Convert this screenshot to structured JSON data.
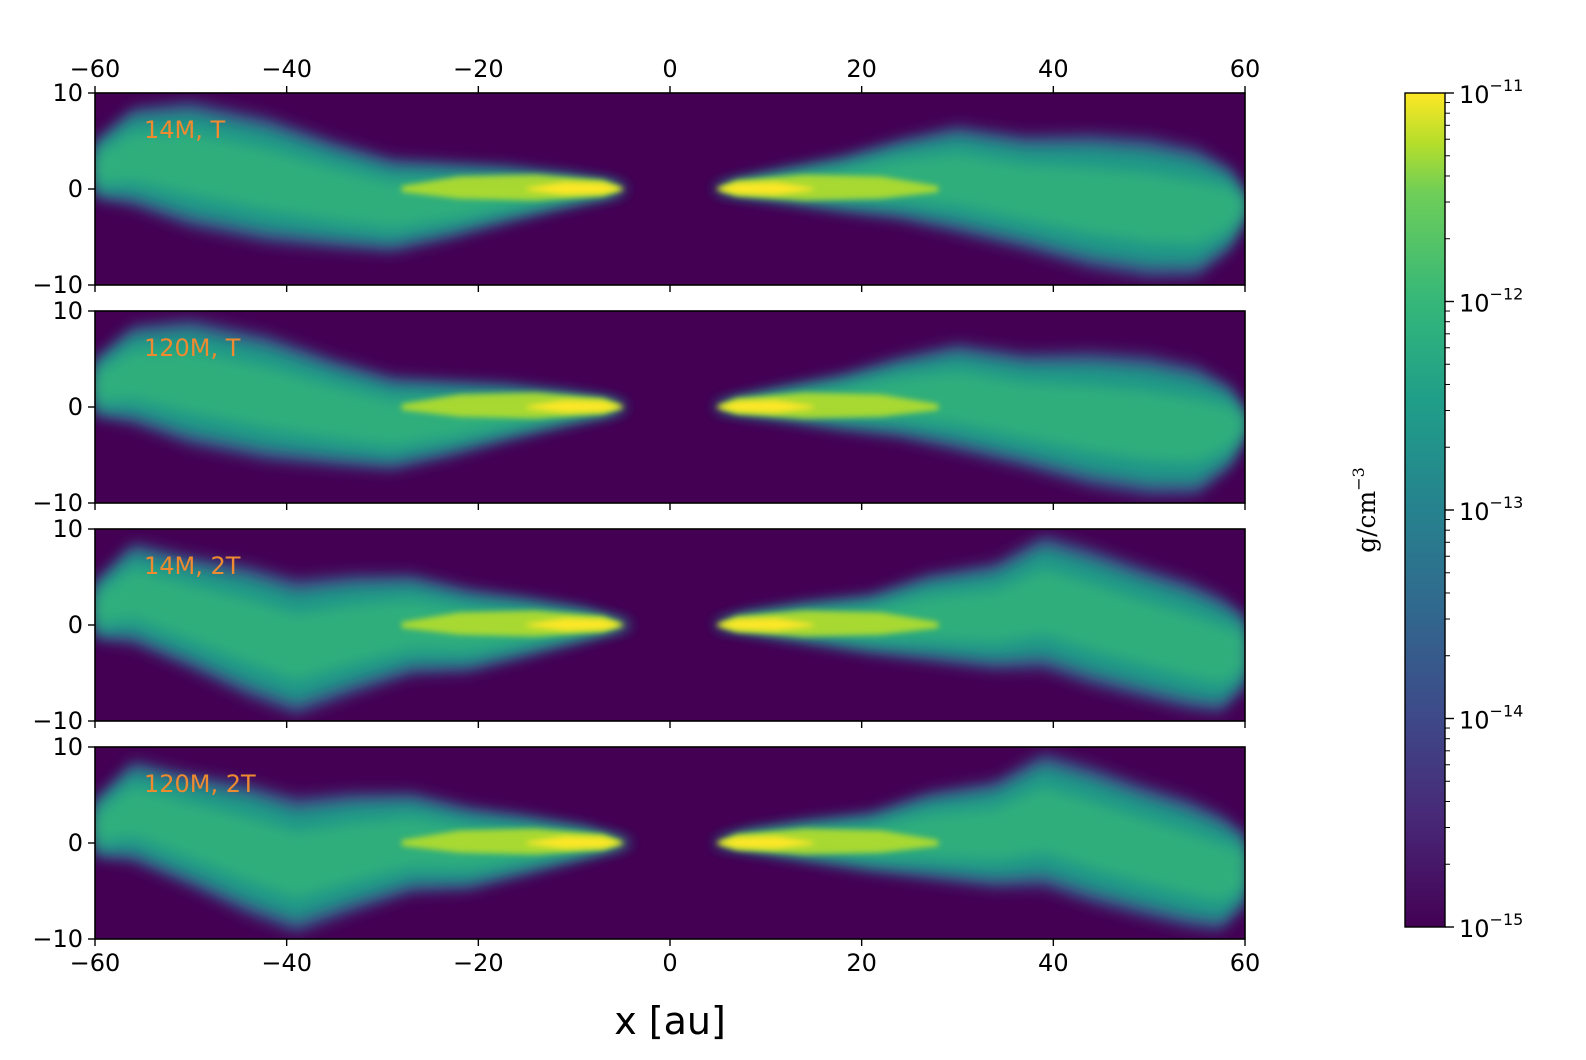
{
  "chart_data": {
    "type": "heatmap",
    "colormap": "viridis",
    "panels": [
      {
        "label": "14M, T",
        "variant": "T"
      },
      {
        "label": "120M, T",
        "variant": "T"
      },
      {
        "label": "14M, 2T",
        "variant": "2T"
      },
      {
        "label": "120M, 2T",
        "variant": "2T"
      }
    ],
    "xlabel": "x [au]",
    "xlim": [
      -60,
      60
    ],
    "ylim": [
      -10,
      10
    ],
    "x_ticks": [
      -60,
      -40,
      -20,
      0,
      20,
      40,
      60
    ],
    "x_tick_labels": [
      "−60",
      "−40",
      "−20",
      "0",
      "20",
      "40",
      "60"
    ],
    "y_ticks": [
      10,
      0,
      -10
    ],
    "y_tick_labels": [
      "10",
      "0",
      "−10"
    ],
    "colorbar": {
      "label": "g/cm",
      "label_exponent": "−3",
      "scale": "log",
      "range": [
        1e-15,
        1e-11
      ],
      "ticks": [
        {
          "base": "10",
          "exp": "−11",
          "value": 1e-11
        },
        {
          "base": "10",
          "exp": "−12",
          "value": 1e-12
        },
        {
          "base": "10",
          "exp": "−13",
          "value": 1e-13
        },
        {
          "base": "10",
          "exp": "−14",
          "value": 1e-14
        },
        {
          "base": "10",
          "exp": "−15",
          "value": 1e-15
        }
      ]
    }
  }
}
